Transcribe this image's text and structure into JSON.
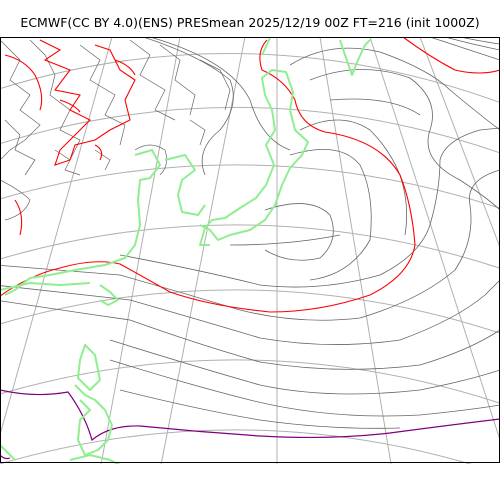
{
  "header": {
    "title": "ECMWF(CC BY 4.0)(ENS) PRESmean 2025/12/19 00Z FT=216 (init 1000Z)"
  },
  "map": {
    "colors": {
      "coastline": "#90ee90",
      "isobar": "#666666",
      "isobar_red": "#ff0000",
      "isobar_purple": "#800080",
      "graticule": "#b0b0b0",
      "frame": "#000000"
    }
  }
}
